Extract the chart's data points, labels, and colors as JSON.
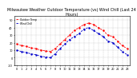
{
  "title": "Milwaukee Weather Outdoor Temperature (vs) Wind Chill (Last 24 Hours)",
  "temp_color": "#ff0000",
  "wind_chill_color": "#0000cc",
  "background_color": "#ffffff",
  "grid_color": "#aaaaaa",
  "hours": [
    0,
    1,
    2,
    3,
    4,
    5,
    6,
    7,
    8,
    9,
    10,
    11,
    12,
    13,
    14,
    15,
    16,
    17,
    18,
    19,
    20,
    21,
    22,
    23
  ],
  "temp": [
    18,
    16,
    15,
    13,
    12,
    10,
    9,
    8,
    12,
    18,
    24,
    30,
    36,
    40,
    44,
    46,
    44,
    40,
    36,
    30,
    28,
    22,
    16,
    12
  ],
  "wind_chill": [
    10,
    8,
    7,
    5,
    4,
    2,
    1,
    0,
    5,
    12,
    18,
    24,
    28,
    32,
    38,
    40,
    36,
    32,
    28,
    22,
    20,
    14,
    8,
    4
  ],
  "ylim": [
    -10,
    55
  ],
  "yticks": [
    -10,
    0,
    10,
    20,
    30,
    40,
    50
  ],
  "ylabel_fontsize": 4,
  "xlabel_fontsize": 4,
  "title_fontsize": 3.5,
  "legend": [
    "Outdoor Temp",
    "Wind Chill"
  ],
  "legend_colors": [
    "#ff0000",
    "#0000cc"
  ]
}
